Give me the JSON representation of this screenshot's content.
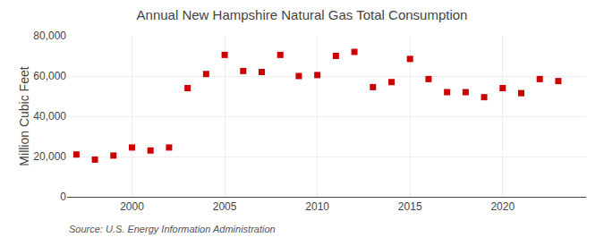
{
  "chart_data": {
    "type": "scatter",
    "title": "Annual New Hampshire Natural Gas Total Consumption",
    "ylabel": "Million Cubic Feet",
    "annotations": [
      "Source: U.S. Energy Information Administration"
    ],
    "x": [
      1997,
      1998,
      1999,
      2000,
      2001,
      2002,
      2003,
      2004,
      2005,
      2006,
      2007,
      2008,
      2009,
      2010,
      2011,
      2012,
      2013,
      2014,
      2015,
      2016,
      2017,
      2018,
      2019,
      2020,
      2021,
      2022,
      2023
    ],
    "values": [
      21000,
      18500,
      20500,
      24500,
      23000,
      24500,
      54000,
      61000,
      70500,
      62500,
      62000,
      70500,
      60000,
      60500,
      70000,
      72000,
      54500,
      57000,
      68500,
      58500,
      52000,
      52000,
      49500,
      54000,
      51500,
      58500,
      57500
    ],
    "color": "#cc0000",
    "marker": "square",
    "xlim": [
      1996.5,
      2024.5
    ],
    "xticks": [
      2000,
      2005,
      2010,
      2015,
      2020
    ],
    "ylim": [
      0,
      80000
    ],
    "yticks": [
      0,
      {
        "value": 20000,
        "label": "20,000"
      },
      {
        "value": 40000,
        "label": "40,000"
      },
      {
        "value": 60000,
        "label": "60,000"
      },
      {
        "value": 80000,
        "label": "80,000"
      }
    ],
    "grid": true
  }
}
